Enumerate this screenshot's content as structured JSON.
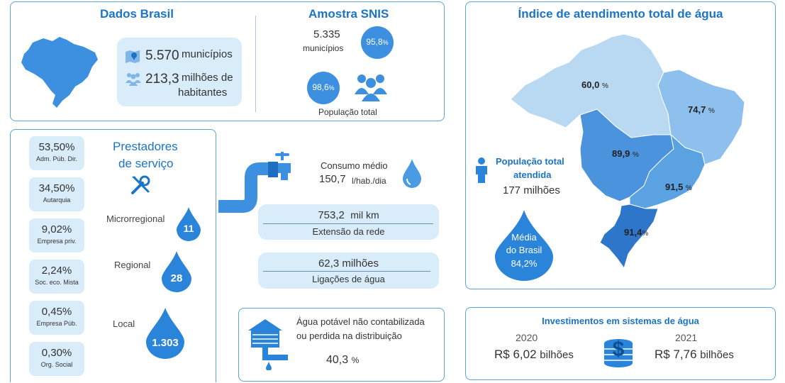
{
  "dados_brasil": {
    "title": "Dados Brasil",
    "municipios_value": "5.570",
    "municipios_label": "municípios",
    "habitantes_value": "213,3",
    "habitantes_label_1": "milhões de",
    "habitantes_label_2": "habitantes"
  },
  "amostra": {
    "title": "Amostra SNIS",
    "municipios_value": "5.335",
    "municipios_label": "municípios",
    "municipios_pct": "95,8",
    "populacao_pct": "98,6",
    "pct_symbol": "%",
    "populacao_label": "População total"
  },
  "prestadores": {
    "title_1": "Prestadores",
    "title_2": "de serviço",
    "stats": [
      {
        "value": "53,50%",
        "label": "Adm. Púb. Dir."
      },
      {
        "value": "34,50%",
        "label": "Autarquia"
      },
      {
        "value": "9,02%",
        "label": "Empresa priv."
      },
      {
        "value": "2,24%",
        "label": "Soc. eco. Mista"
      },
      {
        "value": "0,45%",
        "label": "Empresa Púb."
      },
      {
        "value": "0,30%",
        "label": "Org. Social"
      }
    ],
    "abrangencia": [
      {
        "label": "Microrregional",
        "value": "11"
      },
      {
        "label": "Regional",
        "value": "28"
      },
      {
        "label": "Local",
        "value": "1.303"
      }
    ]
  },
  "consumo": {
    "label": "Consumo médio",
    "value": "150,7",
    "unit": "l/hab./dia"
  },
  "rede": {
    "value": "753,2",
    "unit": "mil km",
    "label": "Extensão da rede"
  },
  "ligacoes": {
    "value": "62,3 milhões",
    "label": "Ligações de água"
  },
  "perdas": {
    "line1": "Água potável não contabilizada",
    "line2": "ou perdida na distribuição",
    "value": "40,3",
    "pct": "%"
  },
  "indice": {
    "title": "Índice de atendimento total de água",
    "regions": [
      {
        "name": "Norte",
        "value": "60,0",
        "color": "#b9d8f2"
      },
      {
        "name": "Nordeste",
        "value": "74,7",
        "color": "#8dc0ec"
      },
      {
        "name": "Centro-Oeste",
        "value": "89,9",
        "color": "#4b93dc"
      },
      {
        "name": "Sudeste",
        "value": "91,5",
        "color": "#5ba2e2"
      },
      {
        "name": "Sul",
        "value": "91,4",
        "color": "#2e76c9"
      }
    ],
    "pct": "%",
    "populacao_label_1": "População total",
    "populacao_label_2": "atendida",
    "populacao_value": "177 milhões",
    "media_label_1": "Média",
    "media_label_2": "do Brasil",
    "media_value": "84,2%"
  },
  "investimentos": {
    "title": "Investimentos em sistemas de água",
    "year1": "2020",
    "value1": "R$ 6,02",
    "unit1": "bilhões",
    "year2": "2021",
    "value2": "R$ 7,76",
    "unit2": "bilhões"
  }
}
